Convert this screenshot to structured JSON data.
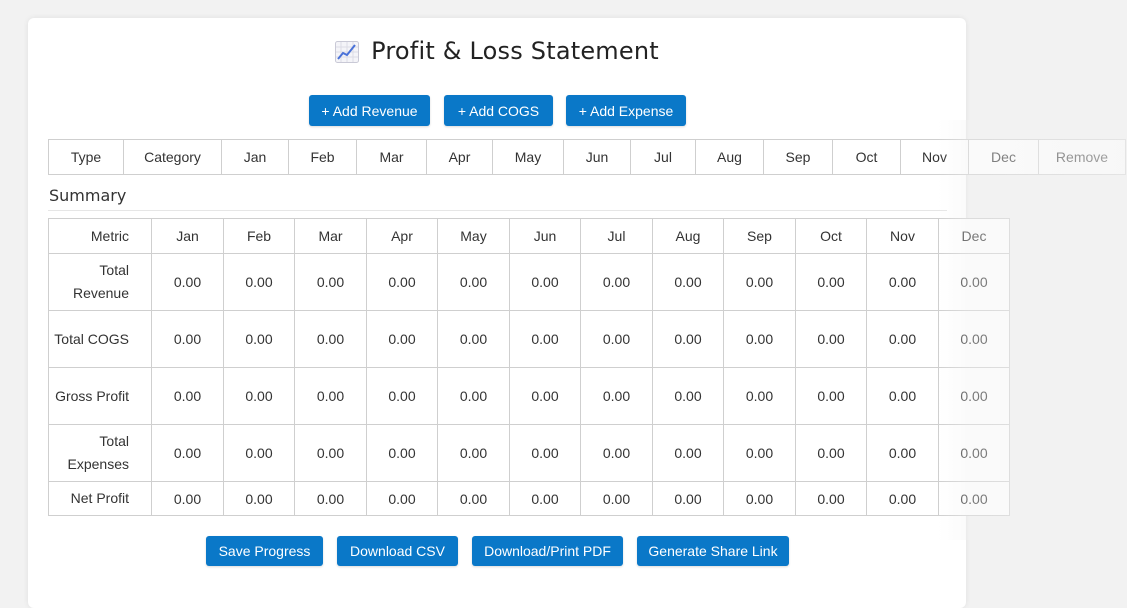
{
  "header": {
    "icon": "chart-increasing-icon",
    "title": "Profit & Loss Statement"
  },
  "actions": {
    "add_revenue": "+ Add Revenue",
    "add_cogs": "+ Add COGS",
    "add_expense": "+ Add Expense"
  },
  "entry_table": {
    "columns": [
      "Type",
      "Category",
      "Jan",
      "Feb",
      "Mar",
      "Apr",
      "May",
      "Jun",
      "Jul",
      "Aug",
      "Sep",
      "Oct",
      "Nov",
      "Dec",
      "Remove"
    ]
  },
  "summary": {
    "title": "Summary",
    "columns": [
      "Metric",
      "Jan",
      "Feb",
      "Mar",
      "Apr",
      "May",
      "Jun",
      "Jul",
      "Aug",
      "Sep",
      "Oct",
      "Nov",
      "Dec"
    ],
    "rows": [
      {
        "label": "Total Revenue",
        "values": [
          "0.00",
          "0.00",
          "0.00",
          "0.00",
          "0.00",
          "0.00",
          "0.00",
          "0.00",
          "0.00",
          "0.00",
          "0.00",
          "0.00"
        ]
      },
      {
        "label": "Total COGS",
        "values": [
          "0.00",
          "0.00",
          "0.00",
          "0.00",
          "0.00",
          "0.00",
          "0.00",
          "0.00",
          "0.00",
          "0.00",
          "0.00",
          "0.00"
        ]
      },
      {
        "label": "Gross Profit",
        "values": [
          "0.00",
          "0.00",
          "0.00",
          "0.00",
          "0.00",
          "0.00",
          "0.00",
          "0.00",
          "0.00",
          "0.00",
          "0.00",
          "0.00"
        ]
      },
      {
        "label": "Total Expenses",
        "values": [
          "0.00",
          "0.00",
          "0.00",
          "0.00",
          "0.00",
          "0.00",
          "0.00",
          "0.00",
          "0.00",
          "0.00",
          "0.00",
          "0.00"
        ]
      },
      {
        "label": "Net Profit",
        "values": [
          "0.00",
          "0.00",
          "0.00",
          "0.00",
          "0.00",
          "0.00",
          "0.00",
          "0.00",
          "0.00",
          "0.00",
          "0.00",
          "0.00"
        ]
      }
    ]
  },
  "footer": {
    "save": "Save Progress",
    "csv": "Download CSV",
    "pdf": "Download/Print PDF",
    "share": "Generate Share Link"
  },
  "colors": {
    "button": "#0a78c8",
    "border": "#cfcfcf"
  }
}
